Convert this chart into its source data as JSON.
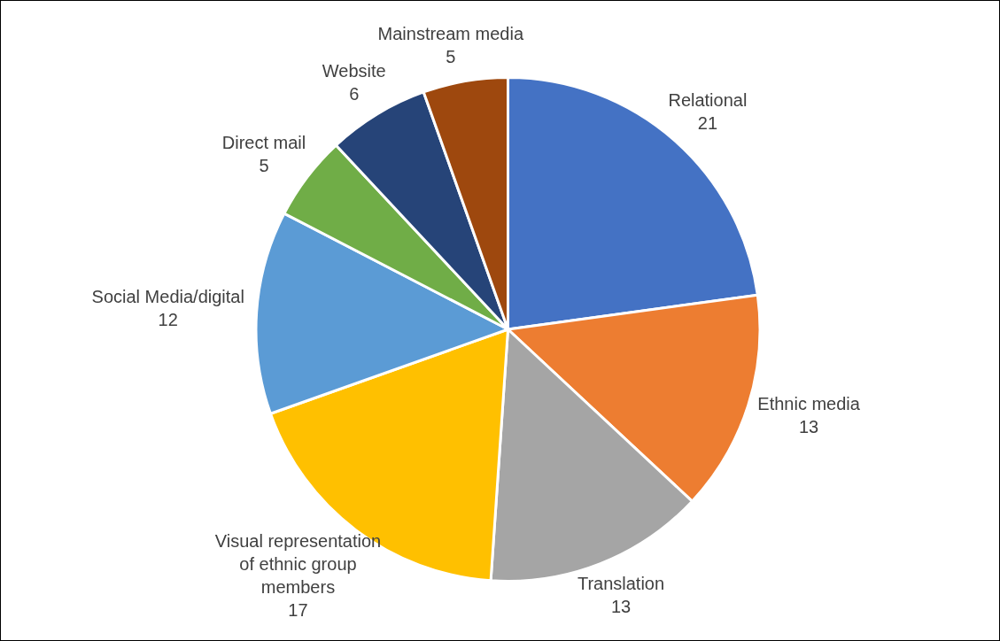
{
  "chart_data": {
    "type": "pie",
    "categories": [
      "Relational",
      "Ethnic media",
      "Translation",
      "Visual representation of ethnic group members",
      "Social Media/digital",
      "Direct mail",
      "Website",
      "Mainstream media"
    ],
    "values": [
      21,
      13,
      13,
      17,
      12,
      5,
      6,
      5
    ],
    "colors": [
      "#4472c4",
      "#ed7d31",
      "#a5a5a5",
      "#ffc000",
      "#5b9bd5",
      "#70ad47",
      "#264478",
      "#9e480e"
    ],
    "data_labels": true,
    "legend": false
  }
}
